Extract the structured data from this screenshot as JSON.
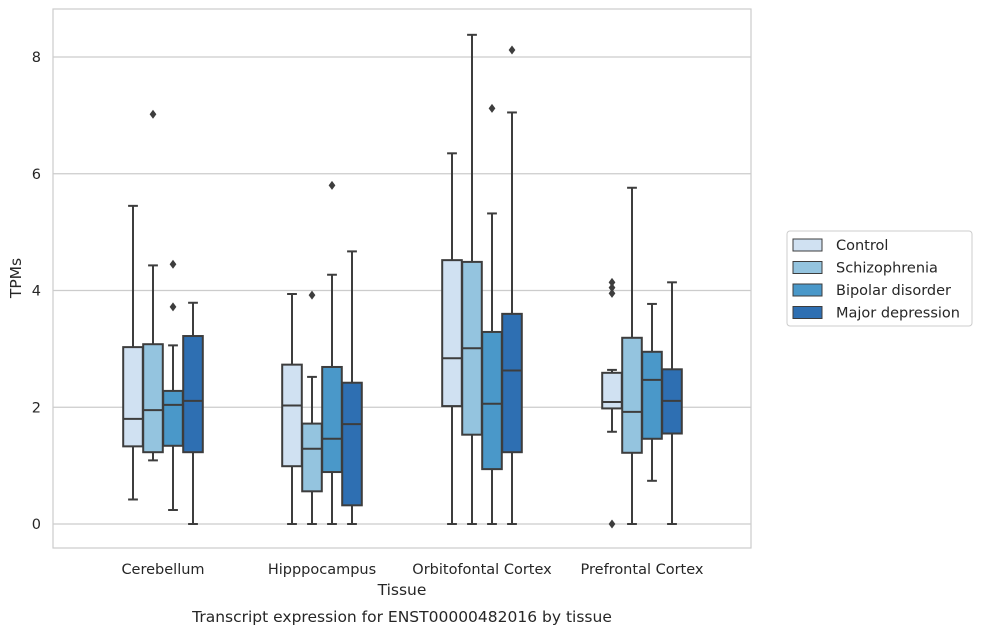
{
  "caption": "Transcript expression for ENST00000482016 by tissue",
  "chart_data": {
    "type": "boxplot",
    "xlabel": "Tissue",
    "ylabel": "TPMs",
    "ylim": [
      -0.4,
      8.8
    ],
    "yticks": [
      0,
      2,
      4,
      6,
      8
    ],
    "grid": true,
    "legend_position": "right",
    "categories": [
      "Cerebellum",
      "Hipppocampus",
      "Orbitofontal Cortex",
      "Prefrontal Cortex"
    ],
    "series": [
      {
        "name": "Control",
        "color": "#d0e1f2",
        "boxes": [
          {
            "whislo": 0.42,
            "q1": 1.33,
            "med": 1.8,
            "q3": 3.03,
            "whishi": 5.45,
            "fliers": []
          },
          {
            "whislo": 0.0,
            "q1": 0.99,
            "med": 2.03,
            "q3": 2.73,
            "whishi": 3.94,
            "fliers": []
          },
          {
            "whislo": 0.0,
            "q1": 2.02,
            "med": 2.84,
            "q3": 4.52,
            "whishi": 6.35,
            "fliers": []
          },
          {
            "whislo": 1.58,
            "q1": 1.98,
            "med": 2.09,
            "q3": 2.59,
            "whishi": 2.64,
            "fliers": [
              4.14,
              4.05,
              3.95,
              0.0
            ]
          }
        ]
      },
      {
        "name": "Schizophrenia",
        "color": "#94c4df",
        "boxes": [
          {
            "whislo": 1.09,
            "q1": 1.23,
            "med": 1.95,
            "q3": 3.08,
            "whishi": 4.43,
            "fliers": [
              7.02
            ]
          },
          {
            "whislo": 0.0,
            "q1": 0.56,
            "med": 1.29,
            "q3": 1.72,
            "whishi": 2.52,
            "fliers": [
              3.92
            ]
          },
          {
            "whislo": 0.0,
            "q1": 1.53,
            "med": 3.01,
            "q3": 4.49,
            "whishi": 8.38,
            "fliers": []
          },
          {
            "whislo": 0.0,
            "q1": 1.22,
            "med": 1.92,
            "q3": 3.19,
            "whishi": 5.76,
            "fliers": []
          }
        ]
      },
      {
        "name": "Bipolar disorder",
        "color": "#4a98c9",
        "boxes": [
          {
            "whislo": 0.24,
            "q1": 1.34,
            "med": 2.04,
            "q3": 2.28,
            "whishi": 3.06,
            "fliers": [
              4.45,
              3.72
            ]
          },
          {
            "whislo": 0.0,
            "q1": 0.89,
            "med": 1.46,
            "q3": 2.69,
            "whishi": 4.27,
            "fliers": [
              5.8
            ]
          },
          {
            "whislo": 0.0,
            "q1": 0.94,
            "med": 2.06,
            "q3": 3.29,
            "whishi": 5.32,
            "fliers": [
              7.12
            ]
          },
          {
            "whislo": 0.74,
            "q1": 1.46,
            "med": 2.47,
            "q3": 2.95,
            "whishi": 3.77,
            "fliers": []
          }
        ]
      },
      {
        "name": "Major depression",
        "color": "#2e6fb2",
        "boxes": [
          {
            "whislo": 0.0,
            "q1": 1.23,
            "med": 2.11,
            "q3": 3.22,
            "whishi": 3.79,
            "fliers": []
          },
          {
            "whislo": 0.0,
            "q1": 0.32,
            "med": 1.71,
            "q3": 2.42,
            "whishi": 4.67,
            "fliers": []
          },
          {
            "whislo": 0.0,
            "q1": 1.23,
            "med": 2.63,
            "q3": 3.6,
            "whishi": 7.05,
            "fliers": [
              8.12
            ]
          },
          {
            "whislo": 0.0,
            "q1": 1.55,
            "med": 2.11,
            "q3": 2.65,
            "whishi": 4.14,
            "fliers": []
          }
        ]
      }
    ]
  }
}
